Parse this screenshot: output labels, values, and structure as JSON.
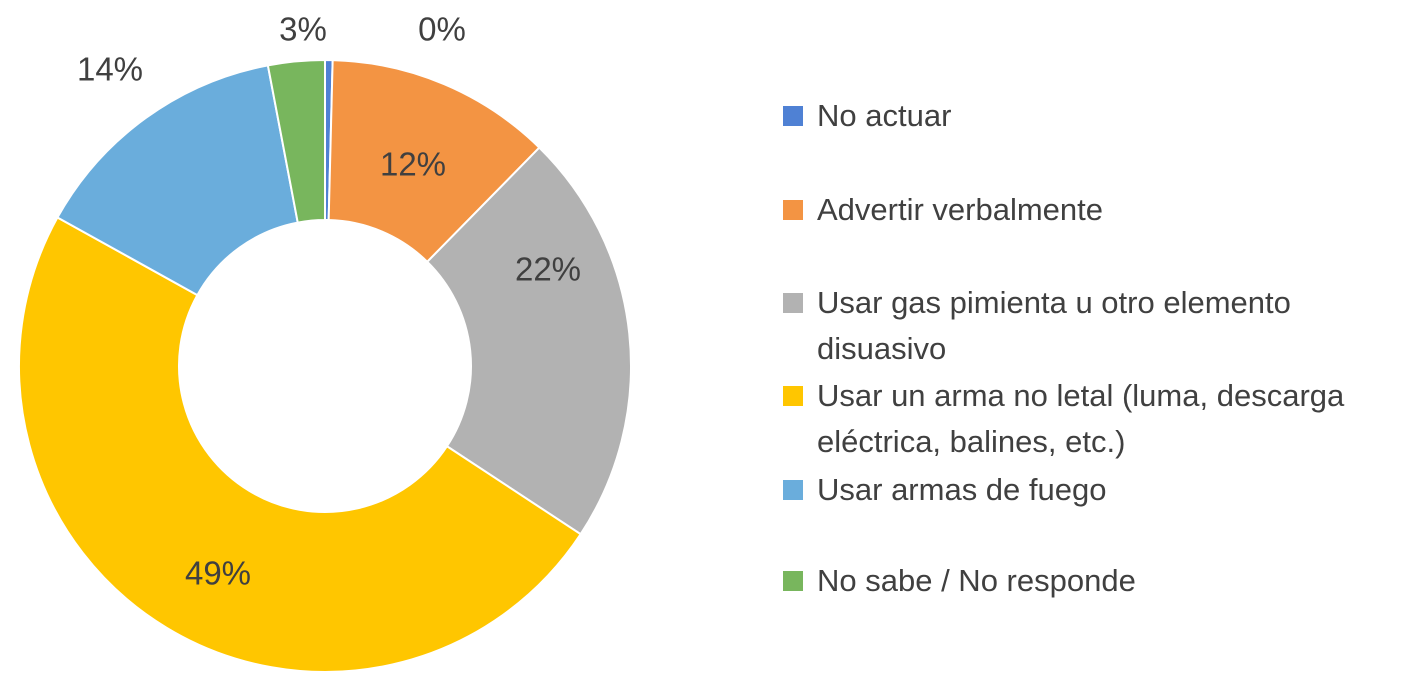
{
  "chart_data": {
    "type": "donut",
    "categories": [
      "No actuar",
      "Advertir verbalmente",
      "Usar gas pimienta u otro elemento disuasivo",
      "Usar un arma no letal (luma, descarga eléctrica, balines, etc.)",
      "Usar armas de fuego",
      "No sabe / No responde"
    ],
    "values": [
      0.4,
      12,
      22,
      49,
      14,
      3
    ],
    "value_labels": [
      "0%",
      "12%",
      "22%",
      "49%",
      "14%",
      "3%"
    ],
    "colors": [
      "#4f81d4",
      "#f39443",
      "#b2b2b2",
      "#ffc600",
      "#6aaddc",
      "#78b65d"
    ],
    "legend": "right"
  }
}
